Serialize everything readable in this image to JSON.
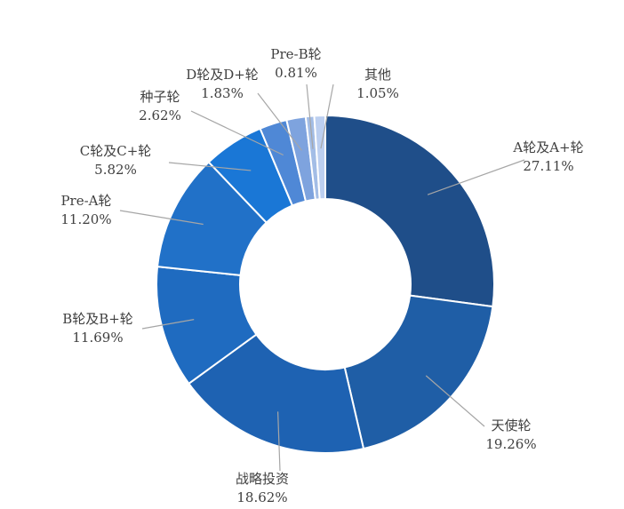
{
  "chart_data": {
    "type": "donut",
    "categories": [
      "A轮及A+轮",
      "天使轮",
      "战略投资",
      "B轮及B+轮",
      "Pre-A轮",
      "C轮及C+轮",
      "种子轮",
      "D轮及D+轮",
      "Pre-B轮",
      "其他"
    ],
    "values": [
      27.11,
      19.26,
      18.62,
      11.69,
      11.2,
      5.82,
      2.62,
      1.83,
      0.81,
      1.05
    ],
    "value_labels": [
      "27.11%",
      "19.26%",
      "18.62%",
      "11.69%",
      "11.20%",
      "5.82%",
      "2.62%",
      "1.83%",
      "0.81%",
      "1.05%"
    ],
    "colors": [
      "#1f4e89",
      "#1f5ea6",
      "#1e62b2",
      "#1f6bc0",
      "#2171c8",
      "#1a77d6",
      "#4f88d6",
      "#7ea3de",
      "#a3bde6",
      "#bccff0"
    ]
  }
}
